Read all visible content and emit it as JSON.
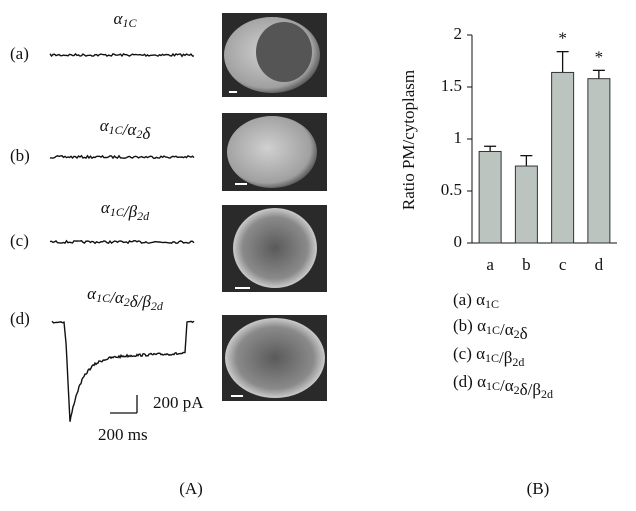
{
  "panel_a": {
    "label": "(A)",
    "rows": [
      {
        "tag": "(a)",
        "title": "α1C"
      },
      {
        "tag": "(b)",
        "title": "α1C/α2δ"
      },
      {
        "tag": "(c)",
        "title": "α1C/β2d"
      },
      {
        "tag": "(d)",
        "title": "α1C/α2δ/β2d"
      }
    ],
    "scale_current": "200 pA",
    "scale_time": "200 ms"
  },
  "chart_data": {
    "type": "bar",
    "panel_label": "(B)",
    "y_label": "Ratio PM/cytoplasm",
    "categories": [
      "a",
      "b",
      "c",
      "d"
    ],
    "values": [
      0.88,
      0.74,
      1.64,
      1.58
    ],
    "errors": [
      0.05,
      0.1,
      0.2,
      0.08
    ],
    "significance": [
      null,
      null,
      "*",
      "*"
    ],
    "color": "#bcc4bf",
    "ylim": [
      0,
      2
    ],
    "yticks": [
      0,
      0.5,
      1,
      1.5,
      2
    ],
    "legend": [
      "(a) α1C",
      "(b) α1C/α2δ",
      "(c) α1C/β2d",
      "(d) α1C/α2δ/β2d"
    ]
  }
}
